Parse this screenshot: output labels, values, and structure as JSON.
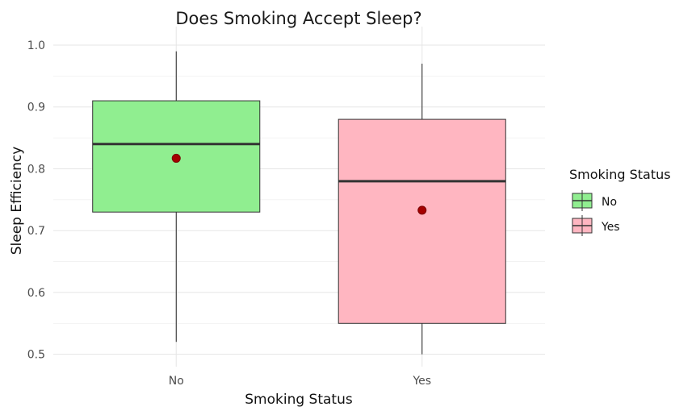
{
  "chart_data": {
    "type": "box",
    "title": "Does Smoking Accept Sleep?",
    "xlabel": "Smoking Status",
    "ylabel": "Sleep Efficiency",
    "ylim": [
      0.48,
      1.03
    ],
    "yticks": [
      0.5,
      0.6,
      0.7,
      0.8,
      0.9,
      1.0
    ],
    "ytick_labels": [
      "0.5",
      "0.6",
      "0.7",
      "0.8",
      "0.9",
      "1.0"
    ],
    "grid": true,
    "legend": {
      "title": "Smoking Status",
      "position": "right",
      "entries": [
        "No",
        "Yes"
      ]
    },
    "categories": [
      "No",
      "Yes"
    ],
    "series": [
      {
        "name": "No",
        "color": "#90EE90",
        "whisker_low": 0.52,
        "q1": 0.73,
        "median": 0.84,
        "q3": 0.91,
        "whisker_high": 0.99,
        "mean": 0.817
      },
      {
        "name": "Yes",
        "color": "#FFB6C1",
        "whisker_low": 0.5,
        "q1": 0.55,
        "median": 0.78,
        "q3": 0.88,
        "whisker_high": 0.97,
        "mean": 0.733
      }
    ],
    "mean_marker_color": "#a50000",
    "median_line_color": "#333333"
  }
}
